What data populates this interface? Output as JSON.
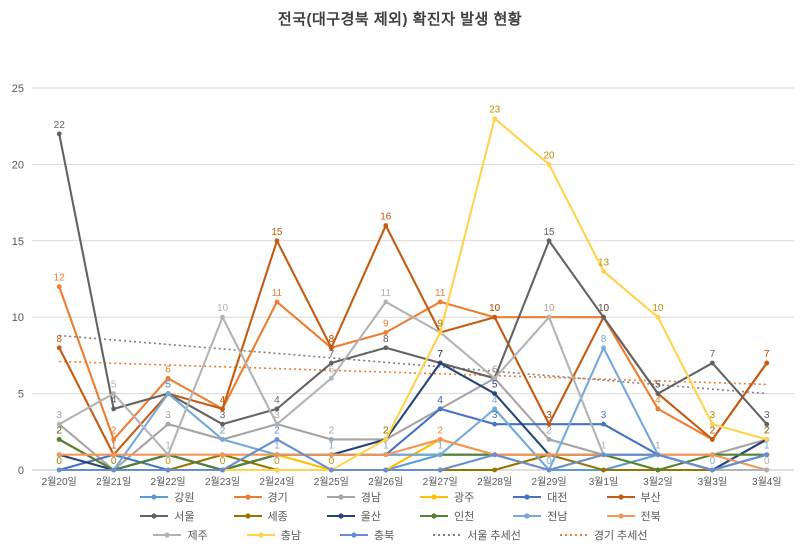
{
  "title": "전국(대구경북 제외) 확진자 발생 현황",
  "chart_data": {
    "type": "line",
    "title": "전국(대구경북 제외) 확진자 발생 현황",
    "xlabel": "",
    "ylabel": "",
    "ylim": [
      0,
      25
    ],
    "yticks": [
      0,
      5,
      10,
      15,
      20,
      25
    ],
    "grid": true,
    "legend_position": "bottom",
    "categories": [
      "2월20일",
      "2월21일",
      "2월22일",
      "2월23일",
      "2월24일",
      "2월25일",
      "2월26일",
      "2월27일",
      "2월28일",
      "2월29일",
      "3월1일",
      "3월2일",
      "3월3일",
      "3월4일"
    ],
    "series": [
      {
        "name": "강원",
        "color": "#5B9BD5",
        "values": [
          0,
          0,
          1,
          0,
          0,
          0,
          0,
          1,
          1,
          0,
          0,
          1,
          0,
          1
        ]
      },
      {
        "name": "경기",
        "color": "#ED7D31",
        "values": [
          12,
          2,
          6,
          4,
          11,
          8,
          9,
          11,
          10,
          10,
          10,
          4,
          2,
          7
        ]
      },
      {
        "name": "경남",
        "color": "#A5A5A5",
        "values": [
          3,
          0,
          3,
          2,
          3,
          2,
          2,
          4,
          6,
          2,
          1,
          1,
          1,
          2
        ]
      },
      {
        "name": "광주",
        "color": "#FFC000",
        "values": [
          0,
          0,
          0,
          0,
          1,
          0,
          0,
          2,
          1,
          0,
          1,
          0,
          0,
          0
        ]
      },
      {
        "name": "대전",
        "color": "#4472C4",
        "values": [
          0,
          1,
          0,
          0,
          1,
          1,
          1,
          4,
          3,
          3,
          3,
          1,
          0,
          2
        ]
      },
      {
        "name": "부산",
        "color": "#C55A11",
        "values": [
          8,
          1,
          5,
          4,
          15,
          8,
          16,
          9,
          10,
          3,
          10,
          5,
          2,
          7
        ]
      },
      {
        "name": "서울",
        "color": "#636363",
        "values": [
          22,
          4,
          5,
          3,
          4,
          7,
          8,
          7,
          6,
          15,
          10,
          5,
          7,
          3
        ]
      },
      {
        "name": "세종",
        "color": "#997300",
        "values": [
          2,
          0,
          0,
          1,
          0,
          0,
          0,
          0,
          0,
          1,
          0,
          0,
          0,
          1
        ]
      },
      {
        "name": "울산",
        "color": "#264478",
        "values": [
          1,
          0,
          1,
          0,
          1,
          1,
          2,
          7,
          5,
          1,
          1,
          1,
          0,
          2
        ]
      },
      {
        "name": "인천",
        "color": "#548235",
        "values": [
          2,
          0,
          1,
          0,
          1,
          1,
          1,
          1,
          1,
          1,
          1,
          0,
          1,
          1
        ]
      },
      {
        "name": "전남",
        "color": "#74A9D8",
        "values": [
          0,
          0,
          5,
          2,
          1,
          1,
          1,
          1,
          4,
          0,
          8,
          1,
          0,
          1
        ]
      },
      {
        "name": "전북",
        "color": "#F1975A",
        "values": [
          1,
          1,
          1,
          1,
          1,
          1,
          1,
          2,
          1,
          1,
          1,
          1,
          1,
          0
        ]
      },
      {
        "name": "제주",
        "color": "#B3B3B3",
        "values": [
          3,
          5,
          1,
          10,
          3,
          6,
          11,
          9,
          6,
          10,
          1,
          1,
          0,
          0
        ]
      },
      {
        "name": "충남",
        "color": "#FFD34D",
        "label_color": "#BF8F00",
        "values": [
          0,
          0,
          0,
          0,
          0,
          0,
          2,
          9,
          23,
          20,
          13,
          10,
          3,
          2
        ]
      },
      {
        "name": "충북",
        "color": "#698ED0",
        "values": [
          0,
          0,
          0,
          0,
          2,
          0,
          0,
          0,
          1,
          0,
          1,
          1,
          0,
          1
        ]
      }
    ],
    "trendlines": [
      {
        "name": "서울 추세선",
        "color": "#7F7F7F",
        "from": 8.8,
        "to": 5.0
      },
      {
        "name": "경기 추세선",
        "color": "#ED7D31",
        "from": 7.1,
        "to": 5.6
      }
    ],
    "legend_rows": [
      [
        "강원",
        "경기",
        "경남",
        "광주",
        "대전",
        "부산"
      ],
      [
        "서울",
        "세종",
        "울산",
        "인천",
        "전남",
        "전북"
      ],
      [
        "제주",
        "충남",
        "충북",
        "서울 추세선",
        "경기 추세선"
      ]
    ]
  }
}
